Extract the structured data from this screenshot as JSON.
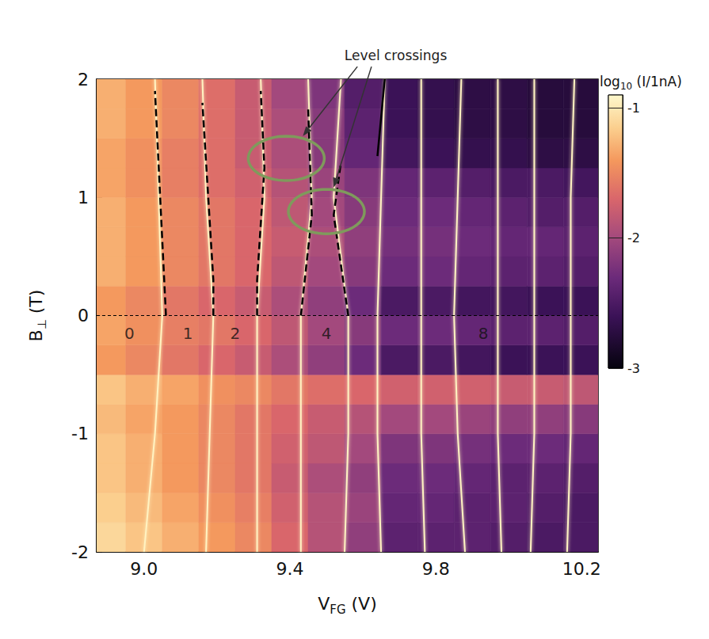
{
  "chart_data": {
    "type": "heatmap",
    "x_label": {
      "text": "VFG (V)",
      "subscript": "FG"
    },
    "y_label": {
      "text": "B⊥ (T)",
      "subscript": "⊥"
    },
    "xlim": [
      8.87,
      10.245
    ],
    "xticks": [
      {
        "value": 9,
        "label": "9.0"
      },
      9.4,
      9.8,
      10.2
    ],
    "ylim": [
      -2,
      2
    ],
    "yticks": [
      -2,
      -1,
      0,
      1,
      2
    ],
    "heatmap": {
      "x_edges": [
        8.85,
        8.95,
        9.05,
        9.15,
        9.25,
        9.35,
        9.45,
        9.55,
        9.65,
        9.75,
        9.85,
        9.95,
        10.05,
        10.15,
        10.25
      ],
      "y_edges": [
        -2,
        -1.75,
        -1.5,
        -1.25,
        -1,
        -0.75,
        -0.5,
        -0.25,
        0,
        0.25,
        0.5,
        0.75,
        1,
        1.25,
        1.5,
        1.75,
        2
      ],
      "values": [
        [
          -1.1,
          -1.2,
          -1.3,
          -1.4,
          -1.5,
          -1.7,
          -1.9,
          -2.1,
          -2.4,
          -2.4,
          -2.4,
          -2.45,
          -2.5,
          -2.5
        ],
        [
          -1.15,
          -1.25,
          -1.35,
          -1.45,
          -1.55,
          -1.75,
          -1.9,
          -2.05,
          -2.35,
          -2.35,
          -2.4,
          -2.4,
          -2.45,
          -2.5
        ],
        [
          -1.2,
          -1.3,
          -1.4,
          -1.5,
          -1.6,
          -1.8,
          -1.95,
          -2.1,
          -2.3,
          -2.3,
          -2.35,
          -2.4,
          -2.4,
          -2.45
        ],
        [
          -1.2,
          -1.3,
          -1.4,
          -1.5,
          -1.6,
          -1.75,
          -1.85,
          -2.0,
          -2.2,
          -2.2,
          -2.25,
          -2.3,
          -2.3,
          -2.35
        ],
        [
          -1.25,
          -1.35,
          -1.4,
          -1.5,
          -1.6,
          -1.7,
          -1.8,
          -1.9,
          -2.0,
          -2.0,
          -2.05,
          -2.1,
          -2.1,
          -2.15
        ],
        [
          -1.2,
          -1.3,
          -1.35,
          -1.45,
          -1.5,
          -1.6,
          -1.65,
          -1.7,
          -1.75,
          -1.75,
          -1.75,
          -1.8,
          -1.8,
          -1.85
        ],
        [
          -1.4,
          -1.5,
          -1.6,
          -1.7,
          -1.8,
          -1.95,
          -2.1,
          -2.3,
          -2.5,
          -2.5,
          -2.55,
          -2.6,
          -2.6,
          -2.6
        ],
        [
          -1.35,
          -1.45,
          -1.55,
          -1.6,
          -1.7,
          -1.85,
          -2.0,
          -2.15,
          -2.3,
          -2.3,
          -2.35,
          -2.4,
          -2.4,
          -2.45
        ],
        [
          -1.4,
          -1.5,
          -1.6,
          -1.7,
          -1.8,
          -1.95,
          -2.1,
          -2.3,
          -2.5,
          -2.5,
          -2.55,
          -2.55,
          -2.6,
          -2.6
        ],
        [
          -1.3,
          -1.4,
          -1.5,
          -1.6,
          -1.7,
          -1.85,
          -2.0,
          -2.15,
          -2.3,
          -2.3,
          -2.35,
          -2.4,
          -2.4,
          -2.45
        ],
        [
          -1.3,
          -1.4,
          -1.5,
          -1.6,
          -1.7,
          -1.8,
          -1.95,
          -2.1,
          -2.25,
          -2.25,
          -2.3,
          -2.35,
          -2.35,
          -2.4
        ],
        [
          -1.3,
          -1.4,
          -1.5,
          -1.6,
          -1.7,
          -1.85,
          -2.0,
          -2.15,
          -2.3,
          -2.3,
          -2.35,
          -2.4,
          -2.45,
          -2.45
        ],
        [
          -1.35,
          -1.45,
          -1.55,
          -1.65,
          -1.75,
          -1.9,
          -2.05,
          -2.2,
          -2.35,
          -2.4,
          -2.45,
          -2.5,
          -2.5,
          -2.55
        ],
        [
          -1.35,
          -1.45,
          -1.55,
          -1.65,
          -1.8,
          -1.95,
          -2.15,
          -2.35,
          -2.55,
          -2.6,
          -2.65,
          -2.65,
          -2.7,
          -2.7
        ],
        [
          -1.3,
          -1.4,
          -1.5,
          -1.65,
          -1.8,
          -1.95,
          -2.15,
          -2.4,
          -2.6,
          -2.65,
          -2.7,
          -2.7,
          -2.75,
          -2.75
        ],
        [
          -1.3,
          -1.4,
          -1.5,
          -1.65,
          -1.8,
          -2.0,
          -2.2,
          -2.45,
          -2.6,
          -2.65,
          -2.7,
          -2.7,
          -2.75,
          -2.75
        ]
      ]
    },
    "colorbar": {
      "label": {
        "text": "log10 (I/1nA)",
        "subscript": "10"
      },
      "range": [
        -3,
        -0.9
      ],
      "ticks": [
        -1,
        -2,
        -3
      ]
    },
    "series": [
      {
        "type": "line",
        "color": "#fff3c2",
        "line_style": "solid",
        "values": [
          [
            9.0,
            -2
          ],
          [
            9.03,
            -1
          ],
          [
            9.05,
            0
          ],
          [
            9.04,
            1
          ],
          [
            9.03,
            2
          ]
        ]
      },
      {
        "type": "line",
        "color": "#fff3c2",
        "line_style": "solid",
        "values": [
          [
            9.17,
            -2
          ],
          [
            9.18,
            -1
          ],
          [
            9.19,
            0
          ],
          [
            9.17,
            1
          ],
          [
            9.16,
            2
          ]
        ]
      },
      {
        "type": "line",
        "color": "#fff3c2",
        "line_style": "solid",
        "values": [
          [
            9.31,
            -2
          ],
          [
            9.31,
            -1
          ],
          [
            9.31,
            0
          ],
          [
            9.33,
            1
          ],
          [
            9.32,
            2
          ]
        ]
      },
      {
        "type": "line",
        "color": "#fff3c2",
        "line_style": "solid",
        "values": [
          [
            9.43,
            -2
          ],
          [
            9.43,
            -1
          ],
          [
            9.43,
            0
          ],
          [
            9.46,
            1
          ],
          [
            9.45,
            2
          ]
        ]
      },
      {
        "type": "line",
        "color": "#fff3c2",
        "line_style": "solid",
        "values": [
          [
            9.55,
            -2
          ],
          [
            9.56,
            -1
          ],
          [
            9.56,
            0
          ],
          [
            9.52,
            1
          ],
          [
            9.54,
            2
          ]
        ]
      },
      {
        "type": "line",
        "color": "#fff3c2",
        "line_style": "solid",
        "values": [
          [
            9.65,
            -2
          ],
          [
            9.64,
            -1
          ],
          [
            9.64,
            0
          ],
          [
            9.65,
            1
          ],
          [
            9.66,
            2
          ]
        ]
      },
      {
        "type": "line",
        "color": "#fff3c2",
        "line_style": "solid",
        "values": [
          [
            9.77,
            -2
          ],
          [
            9.76,
            -1
          ],
          [
            9.76,
            0
          ],
          [
            9.76,
            1
          ],
          [
            9.76,
            2
          ]
        ]
      },
      {
        "type": "line",
        "color": "#fff3c2",
        "line_style": "solid",
        "values": [
          [
            9.88,
            -2
          ],
          [
            9.86,
            -1
          ],
          [
            9.85,
            0
          ],
          [
            9.86,
            1
          ],
          [
            9.87,
            2
          ]
        ]
      },
      {
        "type": "line",
        "color": "#fff3c2",
        "line_style": "solid",
        "values": [
          [
            9.98,
            -2
          ],
          [
            9.97,
            -1
          ],
          [
            9.97,
            0
          ],
          [
            9.97,
            1
          ],
          [
            9.97,
            2
          ]
        ]
      },
      {
        "type": "line",
        "color": "#fff3c2",
        "line_style": "solid",
        "values": [
          [
            10.06,
            -2
          ],
          [
            10.07,
            -1
          ],
          [
            10.07,
            0
          ],
          [
            10.07,
            1
          ],
          [
            10.07,
            2
          ]
        ]
      },
      {
        "type": "line",
        "color": "#fff3c2",
        "line_style": "solid",
        "values": [
          [
            10.16,
            -2
          ],
          [
            10.17,
            -1
          ],
          [
            10.17,
            0
          ],
          [
            10.17,
            1
          ],
          [
            10.18,
            2
          ]
        ]
      },
      {
        "type": "line",
        "color": "#000000",
        "line_style": "dotted",
        "values": [
          [
            8.87,
            0
          ],
          [
            10.245,
            0
          ]
        ]
      },
      {
        "type": "line",
        "color": "#000000",
        "line_style": "dashed",
        "values": [
          [
            9.06,
            0
          ],
          [
            9.03,
            1.9
          ]
        ]
      },
      {
        "type": "line",
        "color": "#000000",
        "line_style": "dashed",
        "values": [
          [
            9.19,
            0
          ],
          [
            9.19,
            0.3
          ],
          [
            9.16,
            1.8
          ]
        ]
      },
      {
        "type": "line",
        "color": "#000000",
        "line_style": "dashed",
        "values": [
          [
            9.31,
            0
          ],
          [
            9.31,
            0.3
          ],
          [
            9.33,
            1.25
          ],
          [
            9.32,
            1.9
          ]
        ]
      },
      {
        "type": "line",
        "color": "#000000",
        "line_style": "dashed",
        "values": [
          [
            9.43,
            0
          ],
          [
            9.46,
            0.85
          ],
          [
            9.45,
            1.75
          ]
        ]
      },
      {
        "type": "line",
        "color": "#000000",
        "line_style": "dashed",
        "values": [
          [
            9.56,
            0
          ],
          [
            9.52,
            0.85
          ],
          [
            9.54,
            1.3
          ]
        ]
      },
      {
        "type": "line",
        "color": "#000000",
        "line_style": "solid",
        "values": [
          [
            9.64,
            1.35
          ],
          [
            9.66,
            2.0
          ]
        ]
      }
    ],
    "text_labels": [
      {
        "text": "0",
        "x": 8.96,
        "y": -0.15
      },
      {
        "text": "1",
        "x": 9.12,
        "y": -0.15
      },
      {
        "text": "2",
        "x": 9.25,
        "y": -0.15
      },
      {
        "text": "4",
        "x": 9.5,
        "y": -0.15
      },
      {
        "text": "8",
        "x": 9.93,
        "y": -0.15
      }
    ],
    "highlights": [
      {
        "x": 9.39,
        "y": 1.33,
        "color": "#7f9a5c"
      },
      {
        "x": 9.5,
        "y": 0.88,
        "color": "#7f9a5c"
      }
    ],
    "annotations": [
      {
        "text": "Level crossings",
        "x": 9.69,
        "y": 2.2
      }
    ]
  }
}
